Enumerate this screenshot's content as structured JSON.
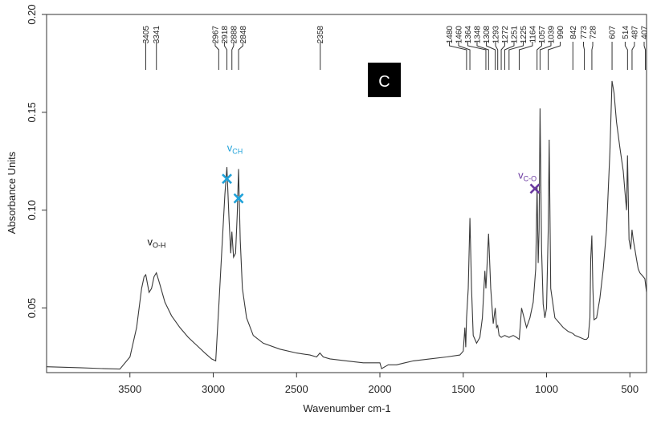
{
  "chart_data": {
    "type": "line",
    "title": "",
    "panel_label": "C",
    "xlabel": "Wavenumber cm-1",
    "ylabel": "Absorbance Units",
    "xlim": [
      4000,
      400
    ],
    "ylim": [
      0.017,
      0.2
    ],
    "x_ticks": [
      3500,
      3000,
      2500,
      2000,
      1500,
      1000,
      500
    ],
    "y_ticks": [
      0.05,
      0.1,
      0.15,
      0.2
    ],
    "y_tick_labels": [
      "0.05",
      "0.10",
      "0.15",
      "0.20"
    ],
    "peak_labels": [
      3405,
      3341,
      2967,
      2918,
      2888,
      2848,
      2358,
      1480,
      1460,
      1364,
      1348,
      1308,
      1293,
      1272,
      1251,
      1225,
      1164,
      1057,
      1039,
      990,
      842,
      773,
      728,
      607,
      514,
      487,
      407
    ],
    "annotations": [
      {
        "main": "v",
        "sub": "O-H",
        "x": 3340,
        "y": 0.082,
        "color": "#111111"
      },
      {
        "main": "v",
        "sub": "CH",
        "x": 2870,
        "y": 0.13,
        "color": "#1fa2d9"
      },
      {
        "main": "v",
        "sub": "C-O",
        "x": 1115,
        "y": 0.116,
        "color": "#6b3aa0"
      }
    ],
    "markers": [
      {
        "x": 2918,
        "y": 0.116,
        "color": "#1fa2d9"
      },
      {
        "x": 2848,
        "y": 0.106,
        "color": "#1fa2d9"
      },
      {
        "x": 1070,
        "y": 0.111,
        "color": "#6b3aa0"
      }
    ],
    "series": [
      {
        "name": "spectrum",
        "color": "#3a3a3a",
        "x": [
          4000,
          3800,
          3650,
          3560,
          3500,
          3460,
          3430,
          3415,
          3405,
          3385,
          3370,
          3355,
          3341,
          3320,
          3290,
          3250,
          3200,
          3150,
          3100,
          3050,
          3010,
          2985,
          2967,
          2945,
          2930,
          2918,
          2905,
          2895,
          2888,
          2878,
          2866,
          2856,
          2848,
          2838,
          2825,
          2800,
          2760,
          2700,
          2600,
          2500,
          2420,
          2380,
          2360,
          2340,
          2300,
          2200,
          2100,
          2000,
          1990,
          1950,
          1900,
          1850,
          1800,
          1700,
          1600,
          1520,
          1500,
          1490,
          1485,
          1480,
          1470,
          1460,
          1450,
          1440,
          1420,
          1400,
          1385,
          1370,
          1364,
          1358,
          1348,
          1335,
          1320,
          1308,
          1300,
          1293,
          1285,
          1272,
          1251,
          1225,
          1200,
          1180,
          1164,
          1150,
          1120,
          1100,
          1080,
          1065,
          1057,
          1050,
          1045,
          1039,
          1030,
          1020,
          1010,
          1000,
          990,
          984,
          975,
          950,
          900,
          870,
          842,
          830,
          800,
          773,
          760,
          750,
          740,
          735,
          728,
          722,
          715,
          700,
          680,
          660,
          640,
          620,
          607,
          595,
          580,
          560,
          540,
          530,
          520,
          514,
          505,
          495,
          487,
          480,
          470,
          460,
          450,
          440,
          430,
          420,
          410,
          400
        ],
        "y": [
          0.02,
          0.0195,
          0.019,
          0.0188,
          0.025,
          0.04,
          0.06,
          0.066,
          0.067,
          0.058,
          0.06,
          0.066,
          0.068,
          0.062,
          0.053,
          0.046,
          0.04,
          0.035,
          0.031,
          0.027,
          0.024,
          0.023,
          0.05,
          0.085,
          0.108,
          0.122,
          0.095,
          0.078,
          0.089,
          0.076,
          0.078,
          0.098,
          0.121,
          0.085,
          0.06,
          0.045,
          0.036,
          0.032,
          0.029,
          0.027,
          0.026,
          0.025,
          0.027,
          0.025,
          0.024,
          0.023,
          0.022,
          0.022,
          0.019,
          0.021,
          0.021,
          0.022,
          0.023,
          0.024,
          0.025,
          0.026,
          0.028,
          0.04,
          0.03,
          0.045,
          0.06,
          0.096,
          0.06,
          0.036,
          0.032,
          0.035,
          0.045,
          0.069,
          0.06,
          0.07,
          0.088,
          0.06,
          0.042,
          0.05,
          0.04,
          0.041,
          0.036,
          0.035,
          0.036,
          0.035,
          0.036,
          0.035,
          0.034,
          0.05,
          0.04,
          0.045,
          0.053,
          0.07,
          0.112,
          0.073,
          0.09,
          0.152,
          0.08,
          0.052,
          0.045,
          0.05,
          0.09,
          0.136,
          0.06,
          0.045,
          0.04,
          0.038,
          0.037,
          0.036,
          0.035,
          0.034,
          0.034,
          0.035,
          0.045,
          0.075,
          0.087,
          0.06,
          0.044,
          0.045,
          0.055,
          0.07,
          0.09,
          0.13,
          0.166,
          0.16,
          0.145,
          0.132,
          0.12,
          0.11,
          0.1,
          0.128,
          0.085,
          0.08,
          0.09,
          0.085,
          0.08,
          0.075,
          0.07,
          0.068,
          0.067,
          0.066,
          0.065,
          0.058
        ]
      }
    ]
  }
}
